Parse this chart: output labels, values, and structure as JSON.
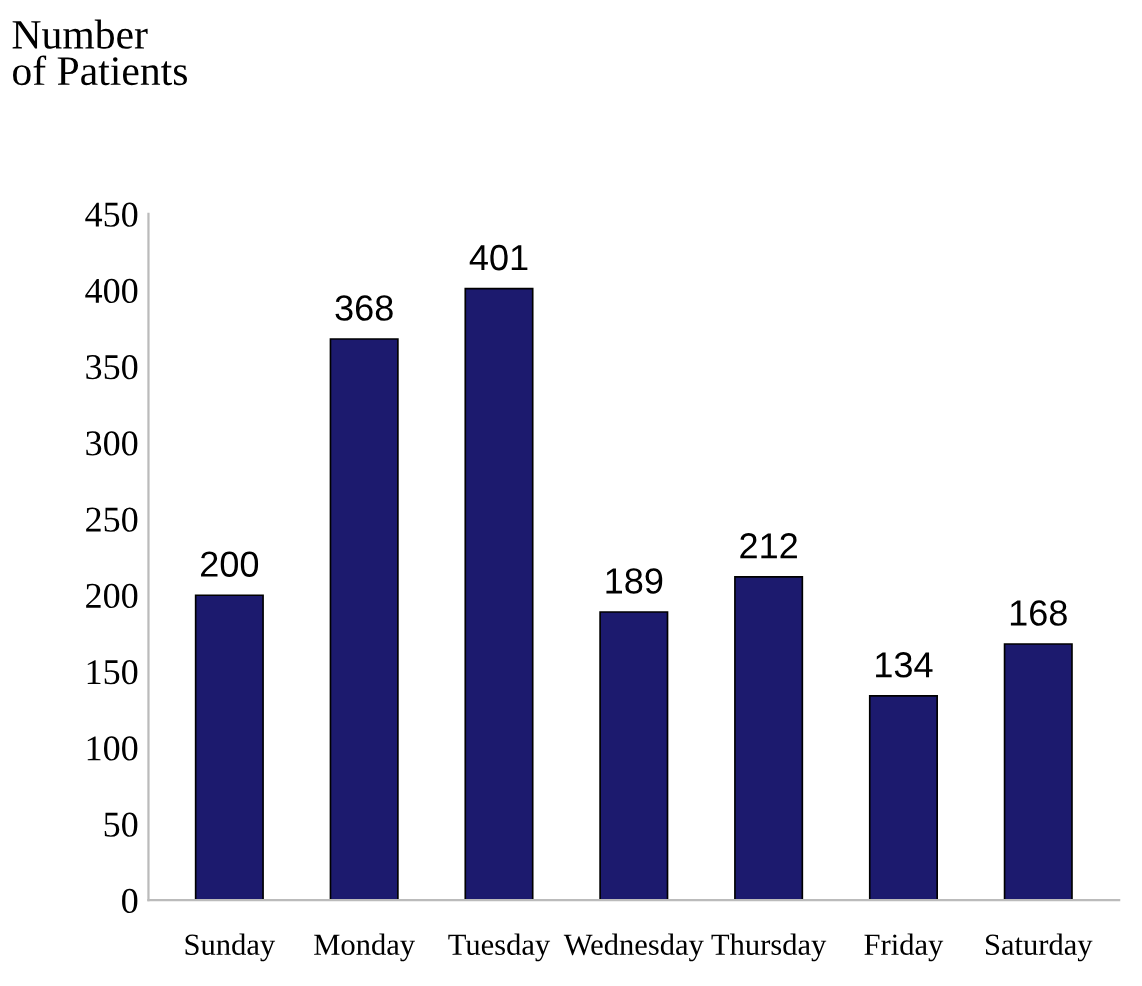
{
  "chart_data": {
    "type": "bar",
    "ylabel": "Number\nof Patients",
    "categories": [
      "Sunday",
      "Monday",
      "Tuesday",
      "Wednesday",
      "Thursday",
      "Friday",
      "Saturday"
    ],
    "values": [
      200,
      368,
      401,
      189,
      212,
      134,
      168
    ],
    "color": "#1c1a6e",
    "ylim": [
      0,
      450
    ],
    "yticks": [
      0,
      50,
      100,
      150,
      200,
      250,
      300,
      350,
      400,
      450
    ],
    "data_labels": true,
    "grid": false,
    "legend": false
  }
}
